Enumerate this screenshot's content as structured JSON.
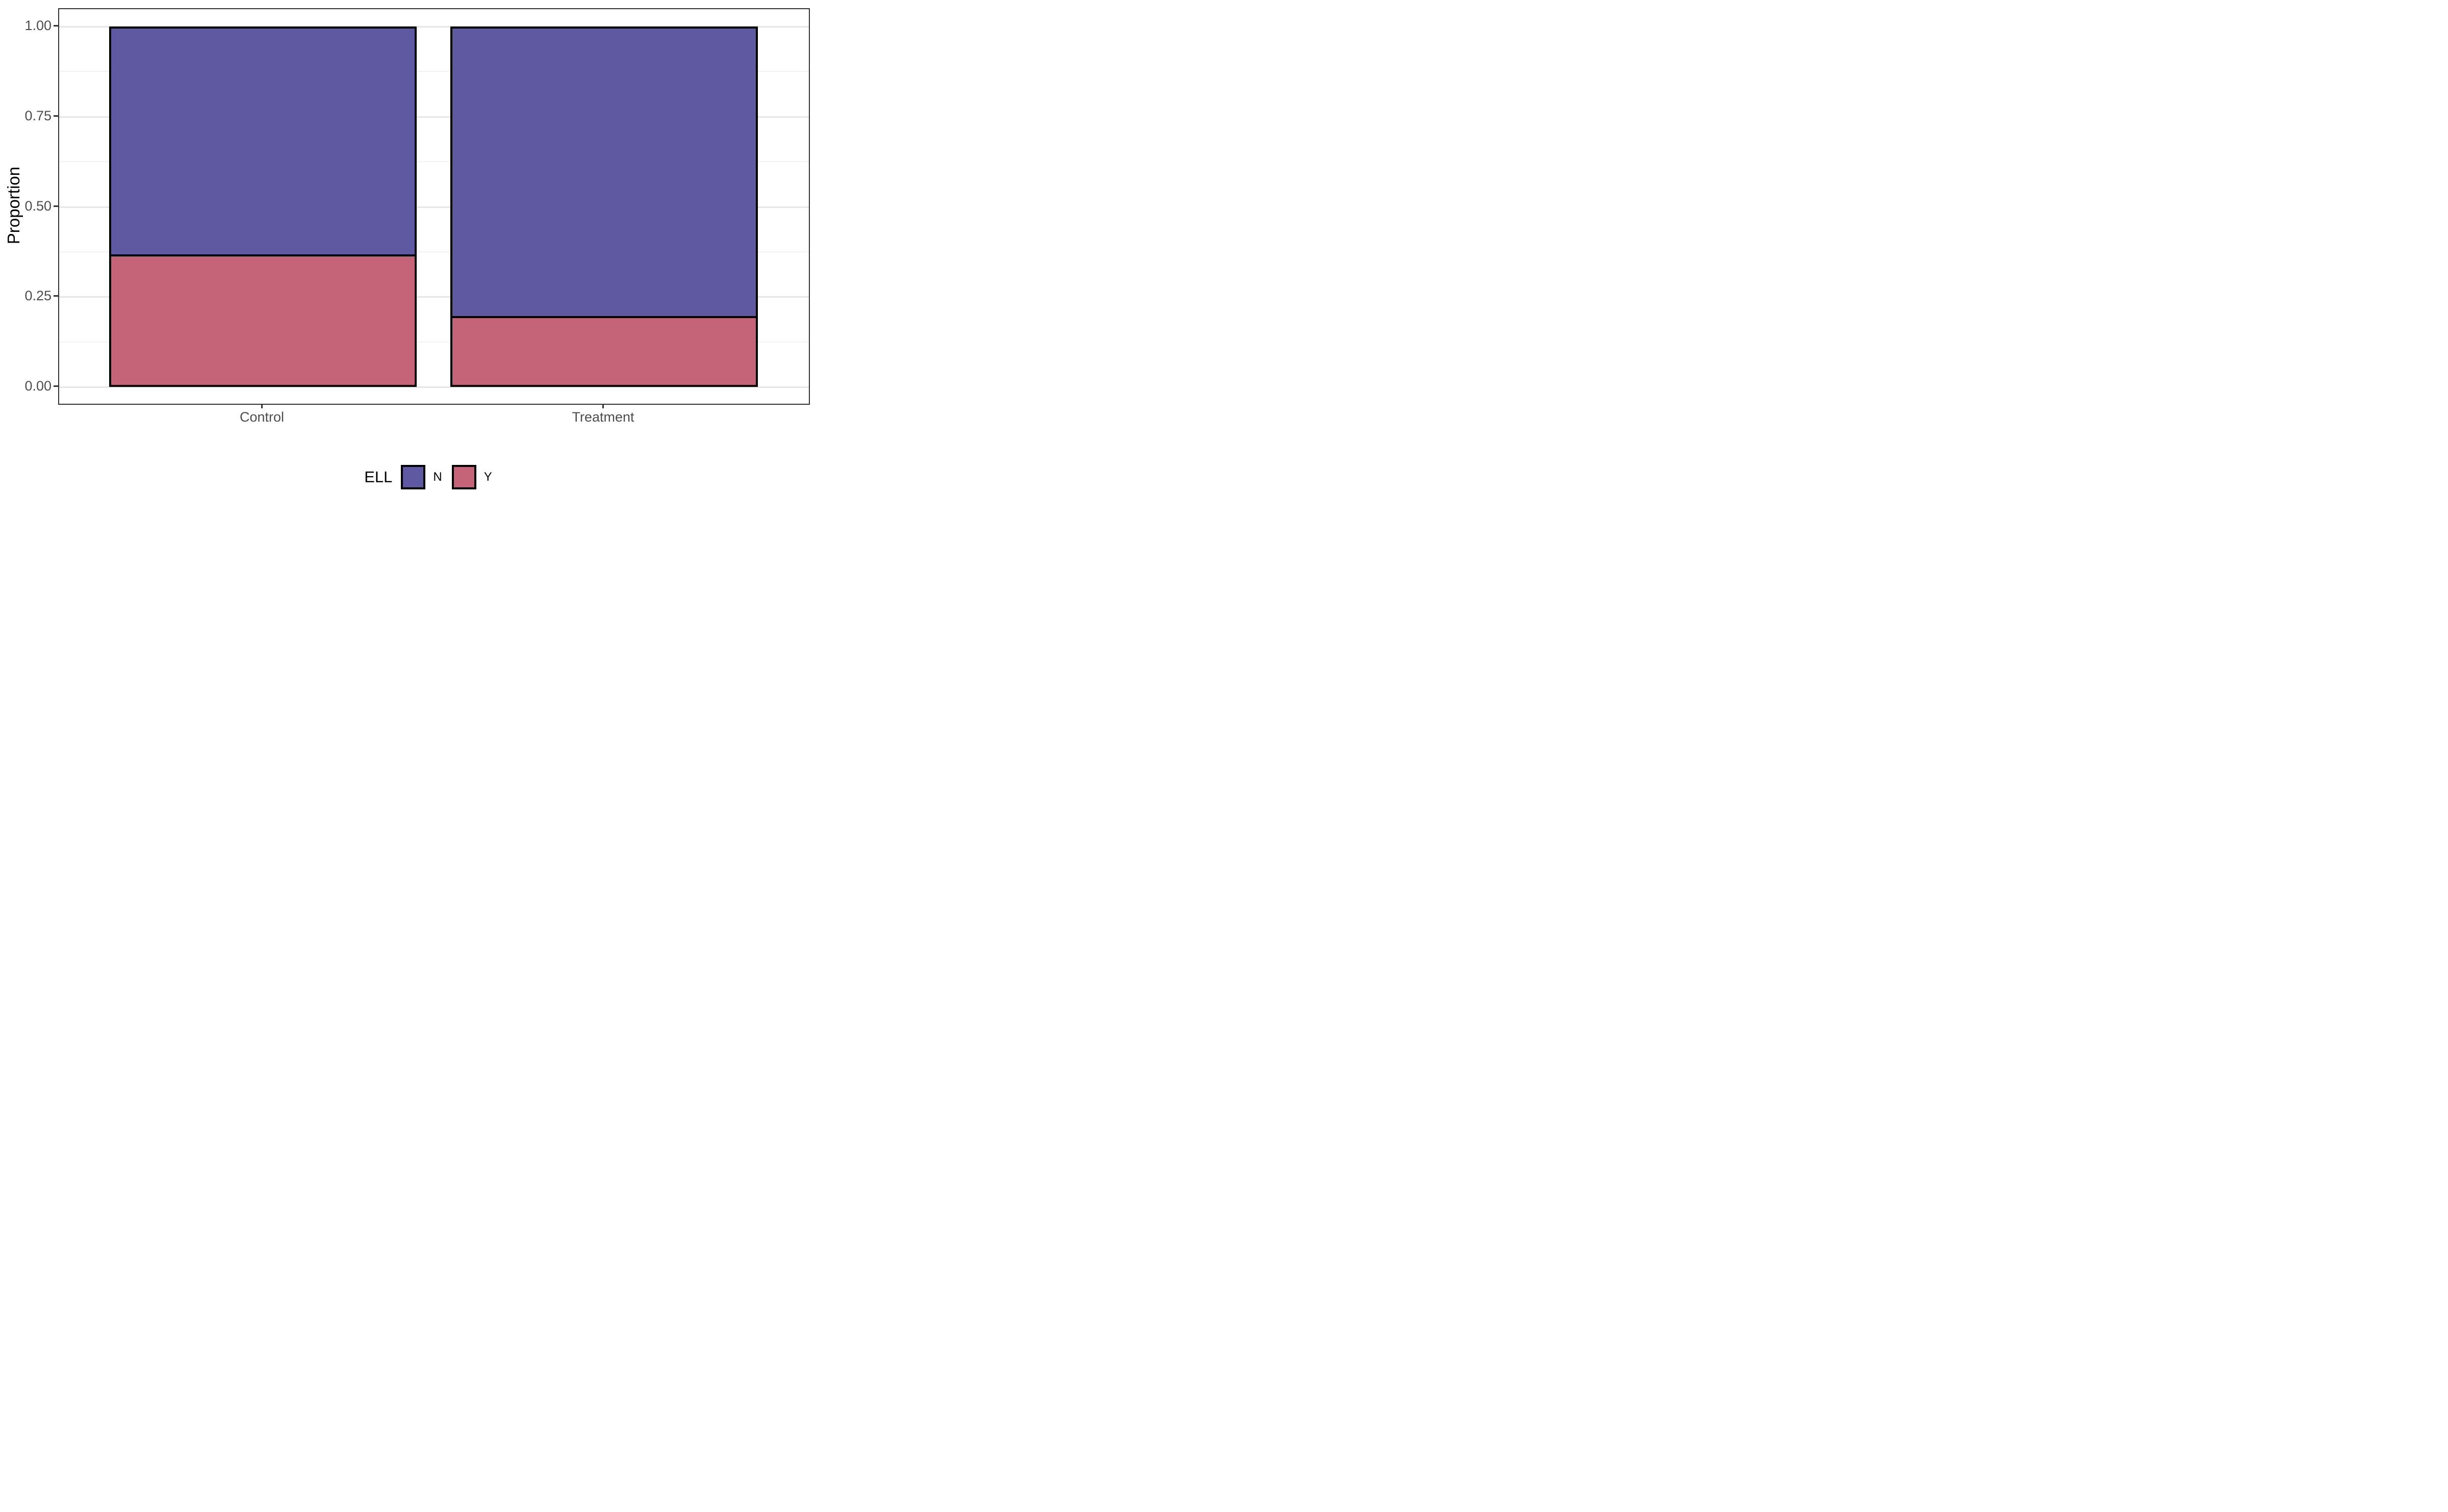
{
  "chart_data": {
    "type": "bar",
    "subtype": "stacked-proportion",
    "categories": [
      "Control",
      "Treatment"
    ],
    "series": [
      {
        "name": "N",
        "values": [
          0.63,
          0.8
        ],
        "color": "#5e59a0"
      },
      {
        "name": "Y",
        "values": [
          0.37,
          0.2
        ],
        "color": "#c56379"
      }
    ],
    "title": "",
    "xlabel": "",
    "ylabel": "Proportion",
    "ylim": [
      0,
      1
    ],
    "y_major_ticks": [
      0.0,
      0.25,
      0.5,
      0.75,
      1.0
    ],
    "y_minor_ticks": [
      0.125,
      0.375,
      0.625,
      0.875
    ],
    "grid": true,
    "legend_title": "ELL",
    "legend_position": "bottom",
    "bar_outline_color": "#000000"
  },
  "axes": {
    "y_title": "Proportion",
    "y_tick_labels": [
      "0.00",
      "0.25",
      "0.50",
      "0.75",
      "1.00"
    ],
    "x_tick_labels": [
      "Control",
      "Treatment"
    ]
  },
  "legend": {
    "title": "ELL",
    "items": [
      {
        "label": "N",
        "color": "#5e59a0"
      },
      {
        "label": "Y",
        "color": "#c56379"
      }
    ]
  },
  "colors": {
    "panel_border": "#333333",
    "major_gridline": "#e6e6e6",
    "minor_gridline": "#f2f2f2",
    "tick_label": "#4d4d4d",
    "axis_title": "#000000",
    "background": "#ffffff"
  }
}
